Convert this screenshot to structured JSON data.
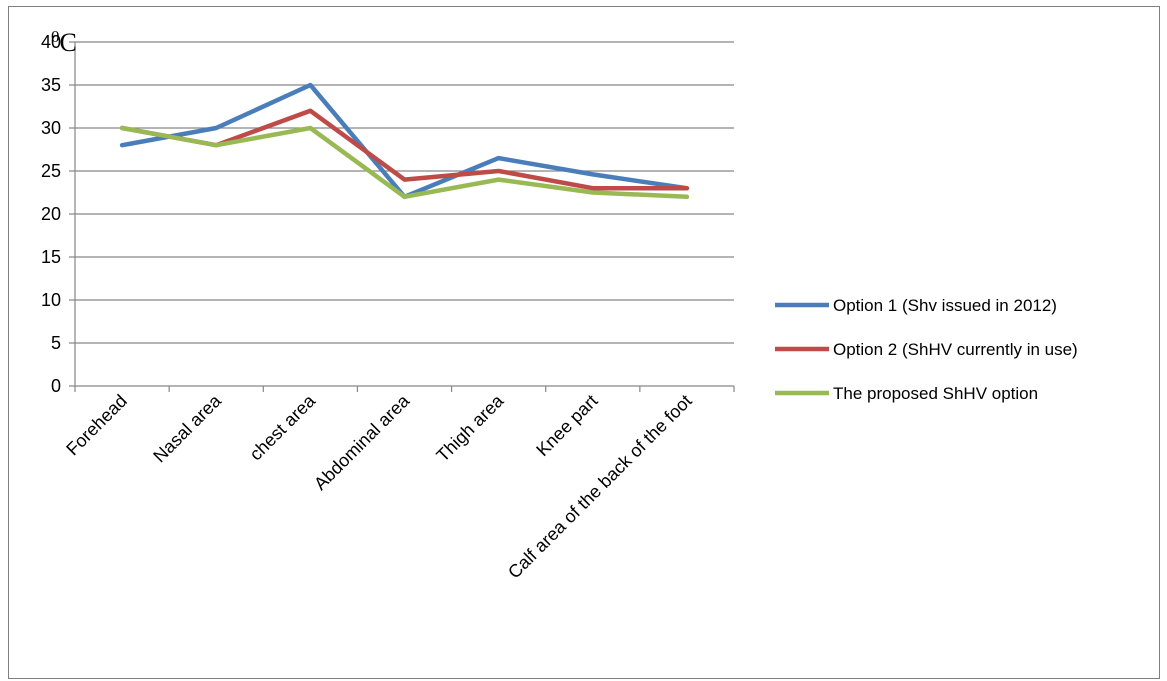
{
  "chart_data": {
    "type": "line",
    "title": "",
    "xlabel": "",
    "ylabel": "",
    "unit_label": {
      "base": "C",
      "superscript": "0"
    },
    "categories": [
      "Forehead",
      "Nasal area",
      "chest area",
      "Abdominal area",
      "Thigh area",
      "Knee part",
      "Calf area of the back of the foot"
    ],
    "y_ticks": [
      0,
      5,
      10,
      15,
      20,
      25,
      30,
      35,
      40
    ],
    "ylim": [
      0,
      40
    ],
    "grid": true,
    "legend_position": "right",
    "series": [
      {
        "name": "Option 1 (Shv issued in 2012)",
        "color": "#4a7ebb",
        "values": [
          28,
          30,
          35,
          22,
          26.5,
          24.6,
          23
        ]
      },
      {
        "name": "Option 2 (ShHV currently in use)",
        "color": "#be4b48",
        "values": [
          30,
          28,
          32,
          24,
          25,
          23,
          23
        ]
      },
      {
        "name": "The proposed ShHV option",
        "color": "#98b954",
        "values": [
          30,
          28,
          30,
          22,
          24,
          22.5,
          22
        ]
      }
    ]
  }
}
